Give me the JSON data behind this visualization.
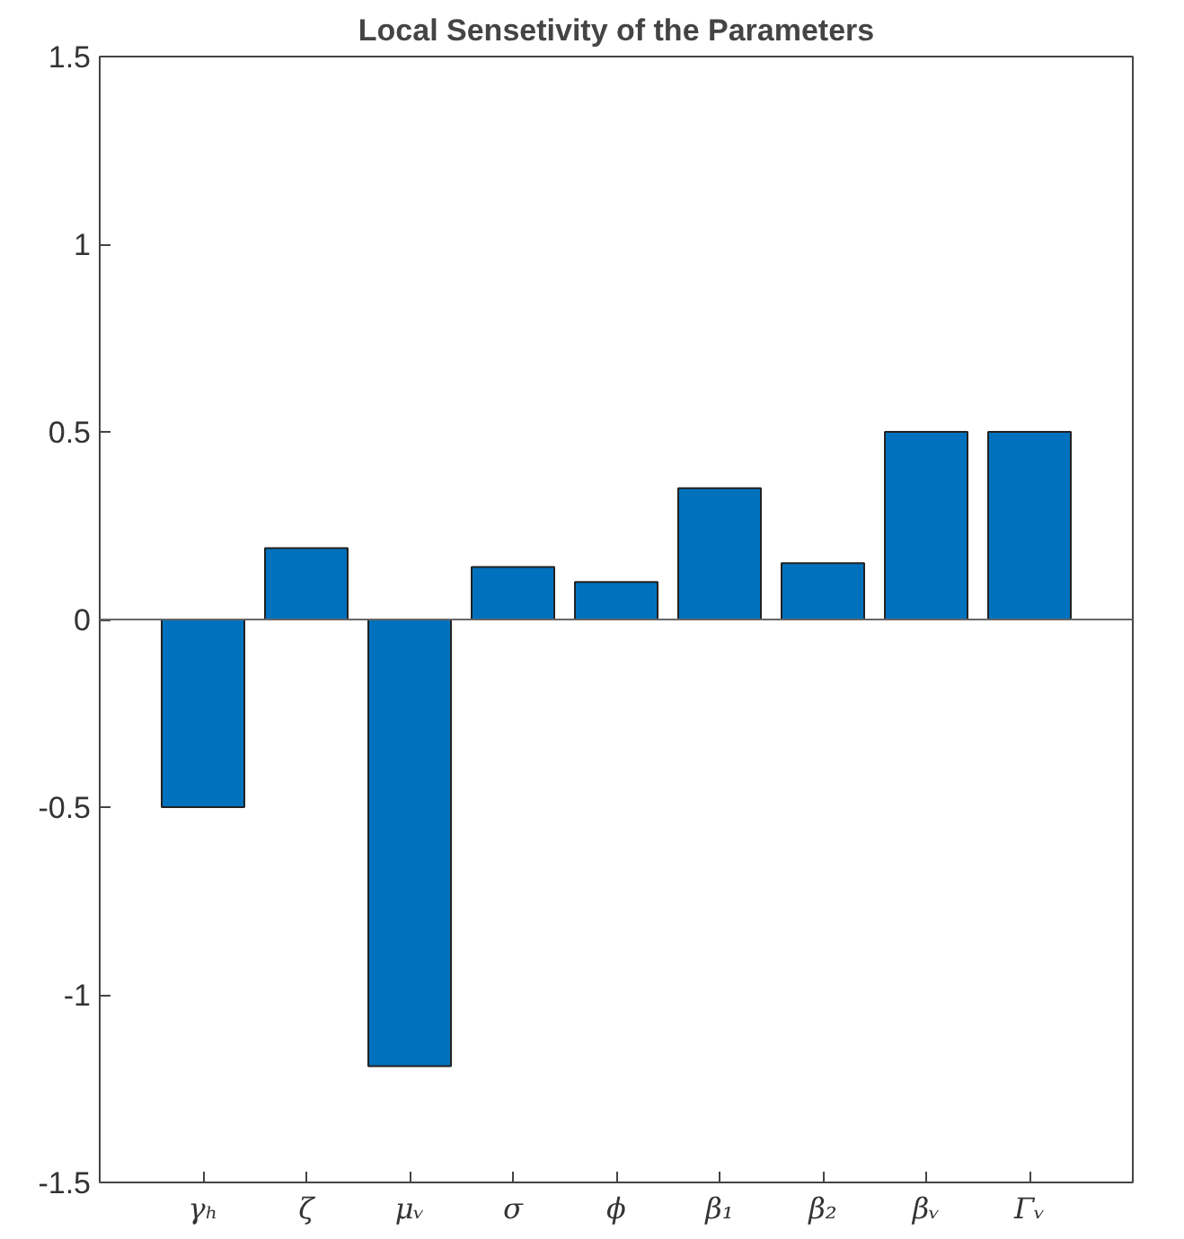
{
  "chart_data": {
    "type": "bar",
    "title": "Local Sensetivity of the Parameters",
    "categories": [
      "γₕ",
      "ζ",
      "μᵥ",
      "σ",
      "ϕ",
      "β₁",
      "β₂",
      "βᵥ",
      "Γᵥ"
    ],
    "values": [
      -0.5,
      0.19,
      -1.19,
      0.14,
      0.1,
      0.35,
      0.15,
      0.5,
      0.5
    ],
    "color": "#0072bd",
    "ylim": [
      -1.5,
      1.5
    ],
    "yticks": [
      -1.5,
      -1,
      -0.5,
      0,
      0.5,
      1,
      1.5
    ],
    "grid": false,
    "ref_lines": [
      {
        "axis": "y",
        "value": 0,
        "color": "#666666"
      }
    ]
  }
}
